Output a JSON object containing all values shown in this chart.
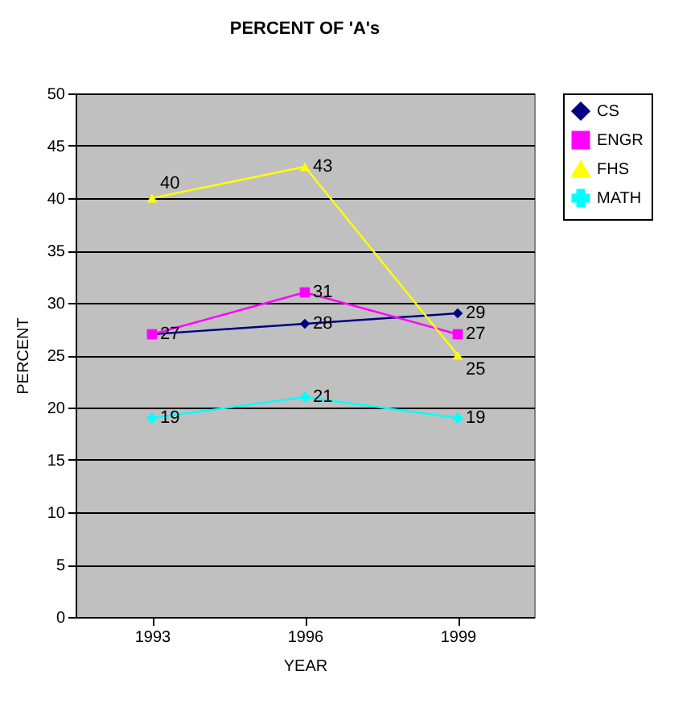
{
  "chart_data": {
    "type": "line",
    "title": "PERCENT OF 'A's",
    "xlabel": "YEAR",
    "ylabel": "PERCENT",
    "categories": [
      "1993",
      "1996",
      "1999"
    ],
    "series": [
      {
        "name": "CS",
        "color": "#000080",
        "marker": "diamond",
        "values": [
          27,
          28,
          29
        ],
        "value_labels": [
          null,
          "28",
          "29"
        ]
      },
      {
        "name": "ENGR",
        "color": "#ff00ff",
        "marker": "square",
        "values": [
          27,
          31,
          27
        ],
        "value_labels": [
          "27",
          "31",
          "27"
        ]
      },
      {
        "name": "FHS",
        "color": "#ffff00",
        "marker": "triangle",
        "values": [
          40,
          43,
          25
        ],
        "value_labels": [
          "40",
          "43",
          "25"
        ]
      },
      {
        "name": "MATH",
        "color": "#00ffff",
        "marker": "cross",
        "values": [
          19,
          21,
          19
        ],
        "value_labels": [
          "19",
          "21",
          "19"
        ]
      }
    ],
    "ylim": [
      0,
      50
    ],
    "yticks": [
      0,
      5,
      10,
      15,
      20,
      25,
      30,
      35,
      40,
      45,
      50
    ],
    "grid": "y",
    "legend": "right"
  }
}
